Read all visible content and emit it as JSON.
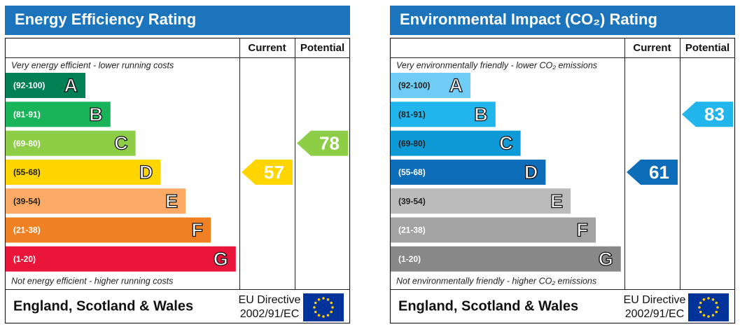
{
  "chart_data": [
    {
      "type": "epc",
      "title": "Energy Efficiency Rating",
      "columns": [
        "Current",
        "Potential"
      ],
      "top_note": "Very energy efficient - lower running costs",
      "bottom_note": "Not energy efficient - higher running costs",
      "bands": [
        {
          "label": "(92-100)",
          "letter": "A",
          "min": 92,
          "max": 100,
          "color": "#008054",
          "label_color": "#ffffff"
        },
        {
          "label": "(81-91)",
          "letter": "B",
          "min": 81,
          "max": 91,
          "color": "#19b459",
          "label_color": "#ffffff"
        },
        {
          "label": "(69-80)",
          "letter": "C",
          "min": 69,
          "max": 80,
          "color": "#8dce46",
          "label_color": "#ffffff"
        },
        {
          "label": "(55-68)",
          "letter": "D",
          "min": 55,
          "max": 68,
          "color": "#ffd500",
          "label_color": "#222222"
        },
        {
          "label": "(39-54)",
          "letter": "E",
          "min": 39,
          "max": 54,
          "color": "#fcaa65",
          "label_color": "#222222"
        },
        {
          "label": "(21-38)",
          "letter": "F",
          "min": 21,
          "max": 38,
          "color": "#ef8023",
          "label_color": "#ffffff"
        },
        {
          "label": "(1-20)",
          "letter": "G",
          "min": 1,
          "max": 20,
          "color": "#e9153b",
          "label_color": "#ffffff"
        }
      ],
      "current": 57,
      "potential": 78,
      "footer": "England, Scotland & Wales",
      "directive": [
        "EU Directive",
        "2002/91/EC"
      ]
    },
    {
      "type": "epc",
      "title": "Environmental Impact (CO₂) Rating",
      "columns": [
        "Current",
        "Potential"
      ],
      "top_note": "Very environmentally friendly - lower CO₂ emissions",
      "bottom_note": "Not environmentally friendly - higher CO₂ emissions",
      "bands": [
        {
          "label": "(92-100)",
          "letter": "A",
          "min": 92,
          "max": 100,
          "color": "#6fcdf5",
          "label_color": "#222222"
        },
        {
          "label": "(81-91)",
          "letter": "B",
          "min": 81,
          "max": 91,
          "color": "#22b5ec",
          "label_color": "#222222"
        },
        {
          "label": "(69-80)",
          "letter": "C",
          "min": 69,
          "max": 80,
          "color": "#0e9ad7",
          "label_color": "#222222"
        },
        {
          "label": "(55-68)",
          "letter": "D",
          "min": 55,
          "max": 68,
          "color": "#0d6db9",
          "label_color": "#ffffff"
        },
        {
          "label": "(39-54)",
          "letter": "E",
          "min": 39,
          "max": 54,
          "color": "#bbbbbb",
          "label_color": "#222222"
        },
        {
          "label": "(21-38)",
          "letter": "F",
          "min": 21,
          "max": 38,
          "color": "#a3a3a3",
          "label_color": "#ffffff"
        },
        {
          "label": "(1-20)",
          "letter": "G",
          "min": 1,
          "max": 20,
          "color": "#888888",
          "label_color": "#ffffff"
        }
      ],
      "current": 61,
      "potential": 83,
      "footer": "England, Scotland & Wales",
      "directive": [
        "EU Directive",
        "2002/91/EC"
      ]
    }
  ]
}
